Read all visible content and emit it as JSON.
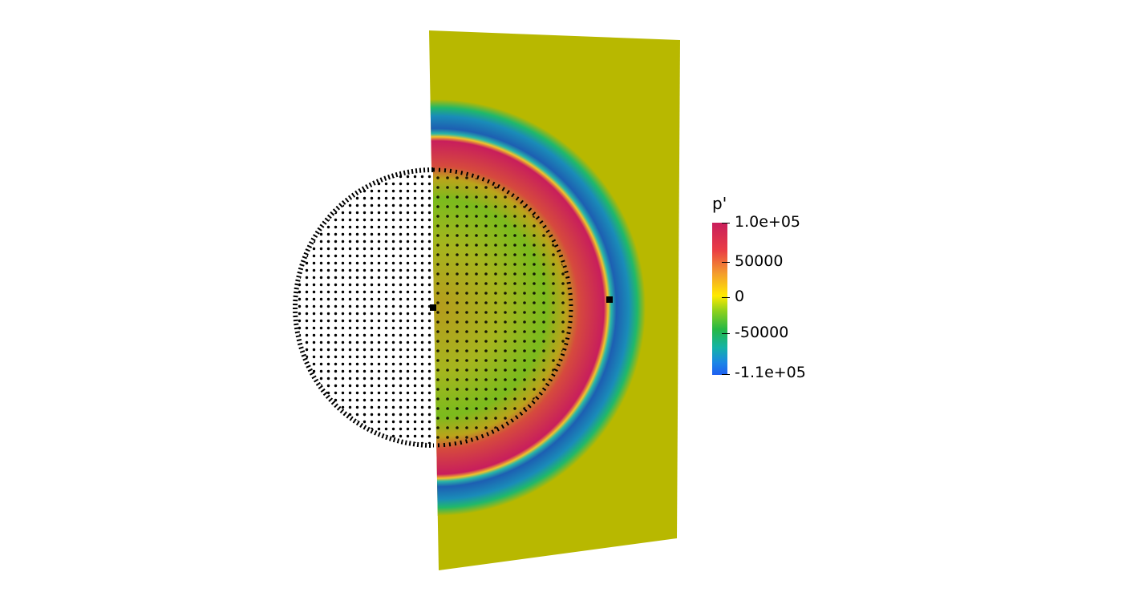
{
  "scene": {
    "plane_colors": {
      "background_field": "#b8b800",
      "ring_positive": "#c81e5c",
      "ring_negative": "#1c5bb0"
    },
    "sphere_point_color": "#000000"
  },
  "legend": {
    "title": "p'",
    "ticks": [
      "1.0e+05",
      "50000",
      "0",
      "-50000",
      "-1.1e+05"
    ]
  }
}
